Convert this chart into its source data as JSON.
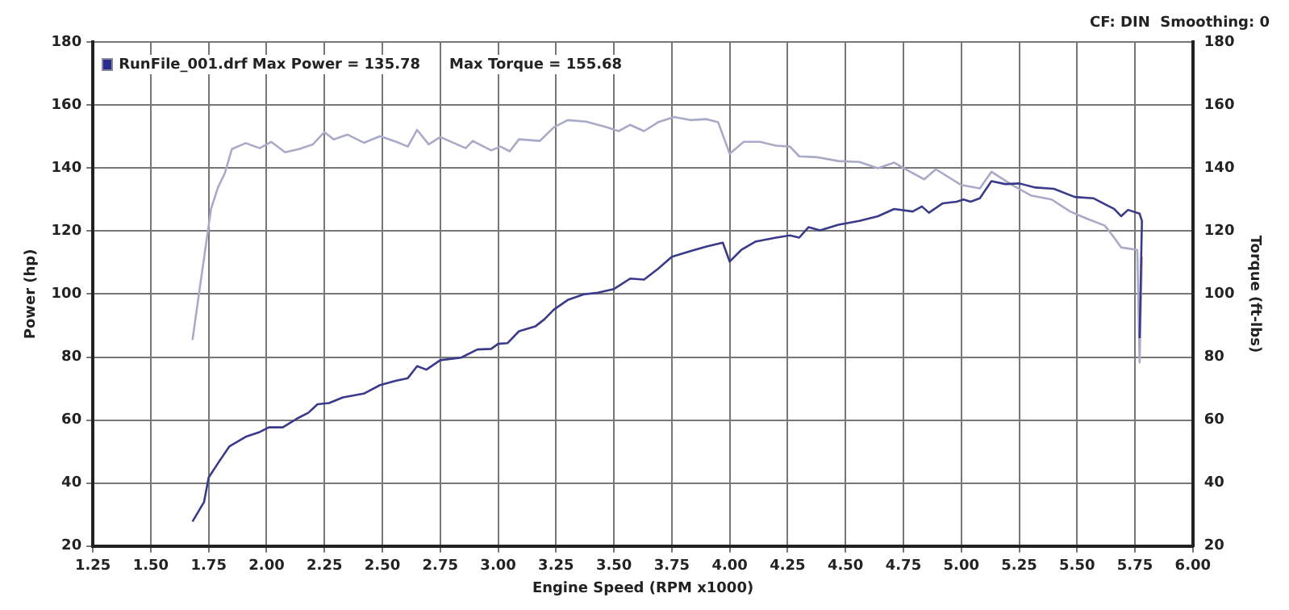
{
  "chart_data": {
    "type": "line",
    "xlabel": "Engine Speed (RPM x1000)",
    "ylabel": "Power (hp)",
    "y2label": "Torque (ft-lbs)",
    "annotations": [
      "RunFile_001.drf Max Power = 135.78",
      "Max Torque = 155.68",
      "CF: DIN  Smoothing: 0"
    ],
    "xlim": [
      1.25,
      6.0
    ],
    "xticks": [
      {
        "value": 1.25,
        "label": "1.25"
      },
      {
        "value": 1.5,
        "label": "1.50"
      },
      {
        "value": 1.75,
        "label": "1.75"
      },
      {
        "value": 2,
        "label": "2.00"
      },
      {
        "value": 2.25,
        "label": "2.25"
      },
      {
        "value": 2.5,
        "label": "2.50"
      },
      {
        "value": 2.75,
        "label": "2.75"
      },
      {
        "value": 3,
        "label": "3.00"
      },
      {
        "value": 3.25,
        "label": "3.25"
      },
      {
        "value": 3.5,
        "label": "3.50"
      },
      {
        "value": 3.75,
        "label": "3.75"
      },
      {
        "value": 4,
        "label": "4.00"
      },
      {
        "value": 4.25,
        "label": "4.25"
      },
      {
        "value": 4.5,
        "label": "4.50"
      },
      {
        "value": 4.75,
        "label": "4.75"
      },
      {
        "value": 5,
        "label": "5.00"
      },
      {
        "value": 5.25,
        "label": "5.25"
      },
      {
        "value": 5.5,
        "label": "5.50"
      },
      {
        "value": 5.75,
        "label": "5.75"
      },
      {
        "value": 6,
        "label": "6.00"
      }
    ],
    "ylim": [
      20,
      180
    ],
    "yticks": [
      20,
      40,
      60,
      80,
      100,
      120,
      140,
      160,
      180
    ],
    "y2lim": [
      20,
      180
    ],
    "y2ticks": [
      20,
      40,
      60,
      80,
      100,
      120,
      140,
      160,
      180
    ],
    "grid": true,
    "marker": "none",
    "line_style": "solid",
    "series": [
      {
        "color": "#3a3a8a",
        "x": [
          1.68,
          1.73,
          1.75,
          1.79,
          1.84,
          1.91,
          1.97,
          2.01,
          2.07,
          2.14,
          2.18,
          2.22,
          2.27,
          2.33,
          2.42,
          2.49,
          2.56,
          2.61,
          2.65,
          2.69,
          2.75,
          2.84,
          2.91,
          2.97,
          3.0,
          3.04,
          3.09,
          3.16,
          3.2,
          3.24,
          3.3,
          3.37,
          3.43,
          3.5,
          3.57,
          3.63,
          3.69,
          3.75,
          3.83,
          3.9,
          3.97,
          4.0,
          4.05,
          4.11,
          4.2,
          4.26,
          4.3,
          4.34,
          4.39,
          4.47,
          4.56,
          4.64,
          4.71,
          4.79,
          4.83,
          4.86,
          4.92,
          4.98,
          5.01,
          5.04,
          5.08,
          5.13,
          5.19,
          5.25,
          5.32,
          5.4,
          5.49,
          5.57,
          5.66,
          5.69,
          5.72,
          5.77,
          5.78,
          5.77
        ],
        "values": [
          27.8,
          34,
          41.8,
          46.3,
          51.7,
          54.7,
          56.2,
          57.7,
          57.7,
          60.8,
          62.3,
          65,
          65.4,
          67.2,
          68.4,
          71.1,
          72.5,
          73.3,
          77.1,
          76,
          79,
          79.8,
          82.4,
          82.6,
          84.2,
          84.4,
          88.2,
          89.7,
          92,
          95,
          98.1,
          99.9,
          100.4,
          101.6,
          104.9,
          104.6,
          108,
          111.8,
          113.6,
          115.1,
          116.3,
          110.3,
          114,
          116.6,
          117.9,
          118.6,
          117.9,
          121.2,
          120.2,
          122,
          123.2,
          124.7,
          127,
          126.2,
          127.8,
          125.8,
          128.8,
          129.3,
          130,
          129.3,
          130.4,
          135.8,
          134.9,
          135.1,
          133.8,
          133.4,
          130.8,
          130.4,
          127,
          124.7,
          126.7,
          125.5,
          123.2,
          86
        ]
      },
      {
        "color": "#a8aac8",
        "axis": "y2",
        "x": [
          1.68,
          1.71,
          1.76,
          1.79,
          1.82,
          1.85,
          1.91,
          1.97,
          2.02,
          2.08,
          2.14,
          2.2,
          2.25,
          2.29,
          2.35,
          2.42,
          2.49,
          2.56,
          2.61,
          2.65,
          2.7,
          2.75,
          2.86,
          2.89,
          2.97,
          3.01,
          3.05,
          3.09,
          3.18,
          3.24,
          3.3,
          3.38,
          3.47,
          3.52,
          3.57,
          3.63,
          3.69,
          3.76,
          3.83,
          3.9,
          3.95,
          4.0,
          4.06,
          4.13,
          4.2,
          4.26,
          4.3,
          4.38,
          4.47,
          4.56,
          4.64,
          4.71,
          4.77,
          4.84,
          4.89,
          4.96,
          5.0,
          5.08,
          5.13,
          5.22,
          5.3,
          5.39,
          5.47,
          5.54,
          5.62,
          5.66,
          5.69,
          5.76,
          5.77,
          5.78
        ],
        "values": [
          85.4,
          101.1,
          127,
          133.8,
          138.4,
          146,
          147.9,
          146.3,
          148.3,
          145,
          146,
          147.5,
          151.4,
          149.1,
          150.6,
          148,
          150.1,
          148.3,
          146.8,
          152.1,
          147.5,
          149.8,
          146.3,
          148.6,
          145.6,
          146.8,
          145.3,
          149.1,
          148.6,
          152.9,
          155.2,
          154.7,
          152.9,
          151.7,
          153.7,
          151.7,
          154.5,
          156.2,
          155.2,
          155.5,
          154.5,
          144.5,
          148.3,
          148.3,
          147.1,
          146.8,
          143.7,
          143.4,
          142.2,
          141.9,
          139.9,
          141.7,
          139.2,
          136.4,
          139.6,
          136.4,
          134.6,
          133.5,
          138.8,
          134.6,
          131.3,
          130,
          126.2,
          124,
          121.7,
          117.9,
          114.8,
          114,
          78.3,
          111.8
        ]
      }
    ]
  }
}
